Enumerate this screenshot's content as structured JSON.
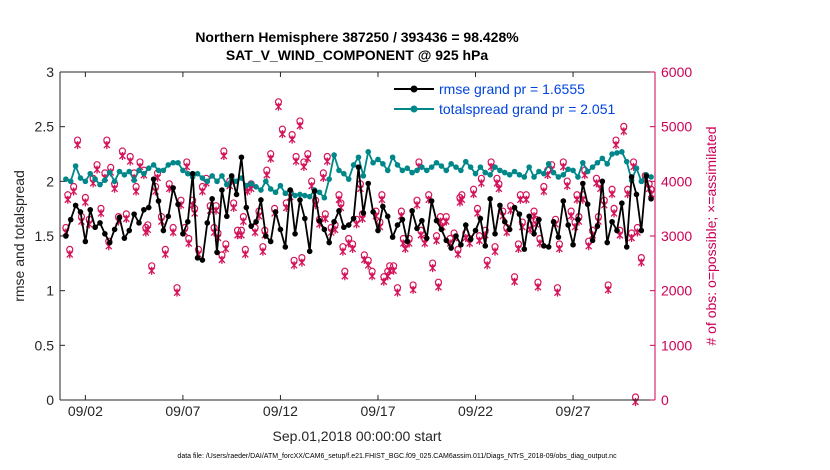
{
  "chart_data": {
    "type": "line",
    "title": "Northern Hemisphere 387250 / 393436 = 98.428%",
    "subtitle": "SAT_V_WIND_COMPONENT @ 925 hPa",
    "xlabel": "Sep.01,2018 00:00:00 start",
    "ylabel": "rmse and totalspread",
    "ylabel_right": "# of obs: o=possible; ×=assimilated",
    "footer": "data file: /Users/raeder/DAI/ATM_forcXX/CAM6_setup/f.e21.FHIST_BGC.f09_025.CAM6assim.011/Diags_NTrS_2018-09/obs_diag_output.nc",
    "xlim": [
      0.7,
      31.2
    ],
    "ylim": [
      0,
      3
    ],
    "ylim_right": [
      0,
      6000
    ],
    "xticks": [
      2,
      7,
      12,
      17,
      22,
      27
    ],
    "xtick_labels": [
      "09/02",
      "09/07",
      "09/12",
      "09/17",
      "09/22",
      "09/27"
    ],
    "yticks": [
      0,
      0.5,
      1,
      1.5,
      2,
      2.5,
      3
    ],
    "ytick_labels": [
      "0",
      "0.5",
      "1",
      "1.5",
      "2",
      "2.5",
      "3"
    ],
    "yticks_right": [
      0,
      1000,
      2000,
      3000,
      4000,
      5000,
      6000
    ],
    "ytick_labels_right": [
      "0",
      "1000",
      "2000",
      "3000",
      "4000",
      "5000",
      "6000"
    ],
    "legend_location": "top-right",
    "colors": {
      "rmse": "#000000",
      "spread": "#00878a",
      "obs": "#d4145a",
      "legend_text": "#0044dd"
    },
    "x": [
      1.0,
      1.25,
      1.5,
      1.75,
      2.0,
      2.25,
      2.5,
      2.75,
      3.0,
      3.25,
      3.5,
      3.75,
      4.0,
      4.25,
      4.5,
      4.75,
      5.0,
      5.25,
      5.5,
      5.75,
      6.0,
      6.25,
      6.5,
      6.75,
      7.0,
      7.25,
      7.5,
      7.75,
      8.0,
      8.25,
      8.5,
      8.75,
      9.0,
      9.25,
      9.5,
      9.75,
      10.0,
      10.25,
      10.5,
      10.75,
      11.0,
      11.25,
      11.5,
      11.75,
      12.0,
      12.25,
      12.5,
      12.75,
      13.0,
      13.25,
      13.5,
      13.75,
      14.0,
      14.25,
      14.5,
      14.75,
      15.0,
      15.25,
      15.5,
      15.75,
      16.0,
      16.25,
      16.5,
      16.75,
      17.0,
      17.25,
      17.5,
      17.75,
      18.0,
      18.25,
      18.5,
      18.75,
      19.0,
      19.25,
      19.5,
      19.75,
      20.0,
      20.25,
      20.5,
      20.75,
      21.0,
      21.25,
      21.5,
      21.75,
      22.0,
      22.25,
      22.5,
      22.75,
      23.0,
      23.25,
      23.5,
      23.75,
      24.0,
      24.25,
      24.5,
      24.75,
      25.0,
      25.25,
      25.5,
      25.75,
      26.0,
      26.25,
      26.5,
      26.75,
      27.0,
      27.25,
      27.5,
      27.75,
      28.0,
      28.25,
      28.5,
      28.75,
      29.0,
      29.25,
      29.5,
      29.75,
      30.0,
      30.25,
      30.5,
      30.75,
      31.0
    ],
    "series": [
      {
        "name": "rmse grand pr = 1.6555",
        "values": [
          1.5,
          1.65,
          1.78,
          1.72,
          1.45,
          1.74,
          1.58,
          1.62,
          1.52,
          1.44,
          1.56,
          1.67,
          1.48,
          1.55,
          1.7,
          1.62,
          1.74,
          1.76,
          2.02,
          1.82,
          1.55,
          1.68,
          1.94,
          1.79,
          1.52,
          1.63,
          2.07,
          1.3,
          1.28,
          1.62,
          1.84,
          1.35,
          1.92,
          1.68,
          2.05,
          1.88,
          2.22,
          1.76,
          1.59,
          1.63,
          1.83,
          1.5,
          1.45,
          1.72,
          1.56,
          1.4,
          1.92,
          1.52,
          1.83,
          1.66,
          1.36,
          1.91,
          1.64,
          1.56,
          1.44,
          1.63,
          1.73,
          1.58,
          1.6,
          1.66,
          2.13,
          1.71,
          1.98,
          1.72,
          1.55,
          1.77,
          1.68,
          1.49,
          1.6,
          1.65,
          1.45,
          1.73,
          1.57,
          1.64,
          1.48,
          1.82,
          1.64,
          1.56,
          1.46,
          1.39,
          1.5,
          1.42,
          1.6,
          1.47,
          1.55,
          1.66,
          1.41,
          1.84,
          1.52,
          1.78,
          1.63,
          1.56,
          1.76,
          1.7,
          1.38,
          1.68,
          1.52,
          1.65,
          1.41,
          1.4,
          1.63,
          1.49,
          1.82,
          1.6,
          1.42,
          1.65,
          1.98,
          1.79,
          1.46,
          1.59,
          2.0,
          1.44,
          1.63,
          1.55,
          1.8,
          1.4,
          2.04,
          1.88,
          1.55,
          2.05,
          1.84
        ]
      },
      {
        "name": "totalspread grand pr = 2.051",
        "values": [
          2.02,
          2.0,
          2.14,
          2.03,
          2.0,
          2.07,
          2.02,
          1.97,
          2.01,
          2.08,
          2.0,
          2.09,
          2.06,
          2.09,
          2.01,
          2.1,
          2.07,
          2.12,
          2.15,
          2.1,
          2.1,
          2.15,
          2.17,
          2.17,
          2.1,
          2.07,
          2.04,
          2.07,
          2.03,
          2.0,
          2.05,
          2.0,
          2.05,
          1.97,
          2.03,
          2.0,
          2.03,
          1.96,
          1.98,
          1.95,
          1.92,
          2.0,
          1.93,
          1.9,
          1.96,
          1.89,
          1.92,
          1.87,
          1.88,
          1.87,
          1.86,
          1.92,
          1.9,
          1.85,
          2.02,
          2.24,
          2.1,
          2.07,
          2.02,
          2.15,
          2.22,
          2.05,
          2.27,
          2.17,
          2.2,
          2.16,
          2.1,
          2.22,
          2.15,
          2.1,
          2.12,
          2.08,
          2.1,
          2.13,
          2.1,
          2.13,
          2.17,
          2.14,
          2.1,
          2.16,
          2.13,
          2.1,
          2.18,
          2.13,
          2.07,
          2.13,
          2.08,
          2.06,
          2.13,
          2.1,
          2.08,
          2.06,
          2.09,
          2.06,
          2.04,
          2.13,
          2.04,
          2.09,
          2.07,
          2.16,
          2.08,
          2.04,
          2.06,
          2.11,
          2.1,
          2.04,
          2.17,
          2.09,
          2.13,
          2.17,
          2.21,
          2.16,
          2.25,
          2.26,
          2.27,
          2.18,
          2.01,
          2.12,
          2.0,
          2.06,
          2.04
        ]
      }
    ],
    "obs_possible": [
      3100,
      2700,
      3850,
      4700,
      3300,
      3650,
      3250,
      4000,
      4250,
      3450,
      4100,
      4700,
      4200,
      3900,
      3300,
      4500,
      3350,
      4400,
      4100,
      3850,
      4300,
      4150,
      3150,
      2400,
      3850,
      4100,
      3300,
      2700,
      3900,
      3100,
      2000,
      3600,
      3100,
      2900,
      3600,
      3450,
      2700,
      3850,
      4000,
      3500,
      3100,
      3000,
      2600,
      2800,
      3950,
      3550,
      3050,
      3050,
      3300,
      3850,
      3900,
      3100,
      3400,
      2750,
      4150,
      4450,
      3450,
      5400,
      4900,
      3550,
      3750,
      4800,
      4400,
      5050,
      4300,
      4450,
      3950,
      3600,
      3250,
      4100,
      4400,
      3100,
      3150,
      3700,
      3550,
      2300,
      2900,
      2800,
      3250,
      3900,
      2600,
      2500,
      2300,
      3400,
      3200,
      2200,
      2300,
      2400,
      2400,
      2000,
      3400,
      2800,
      2900,
      2050,
      3600,
      3050,
      2900,
      3700,
      2450,
      2950,
      2100,
      3200,
      3300,
      2900,
      3000,
      2700,
      3700,
      3000,
      2900,
      3800,
      3450,
      4000,
      3050,
      2500,
      4300,
      2750,
      3900,
      3400,
      3100,
      3500,
      2200,
      2800,
      3200,
      3700,
      3150,
      3400,
      3250,
      2900,
      3850,
      4150,
      4250,
      3250,
      2800,
      4300,
      3950,
      3400,
      3200,
      3300,
      3700,
      4150,
      2850,
      3050,
      4000,
      3900,
      3600,
      2050,
      3800,
      4700,
      3050,
      4950,
      3800,
      3000,
      4300,
      3100,
      2550,
      4050,
      3900,
      3800,
      3700,
      2850,
      3100,
      4300,
      4500,
      3050,
      2550,
      2750,
      3700,
      4300,
      3650,
      4000,
      2100,
      3700,
      3450,
      3500,
      2700,
      2500,
      3350,
      3350,
      2900,
      3300,
      2950,
      3700,
      2000,
      3300,
      0
    ],
    "obs_possible_x": [
      1.0,
      1.2,
      1.4,
      1.6,
      1.8,
      2.0,
      2.2,
      2.4,
      2.6,
      2.8,
      3.0,
      3.1,
      3.3,
      3.5,
      3.7,
      3.9,
      4.1,
      4.3,
      4.5,
      4.6,
      4.8,
      5.0,
      5.2,
      5.4,
      5.6,
      5.7,
      5.9,
      6.1,
      6.3,
      6.5,
      6.7,
      6.9,
      7.1,
      7.3,
      7.5,
      7.6,
      7.8,
      8.0,
      8.2,
      8.4,
      8.6,
      8.8,
      9.0,
      9.2,
      9.4,
      9.6,
      9.8,
      10.0,
      10.1,
      10.3,
      10.5,
      10.7,
      10.9,
      11.1,
      11.3,
      11.5,
      11.7,
      11.9,
      12.1,
      12.3,
      12.5,
      12.6,
      12.8,
      13.0,
      13.2,
      13.4,
      13.6,
      13.8,
      14.0,
      14.2,
      14.4,
      14.6,
      14.8,
      15.0,
      15.1,
      15.3,
      15.5,
      15.7,
      15.9,
      16.1,
      16.3,
      16.5,
      16.7,
      16.9,
      17.1,
      17.3,
      17.5,
      17.6,
      17.8,
      18.0,
      18.2,
      18.4,
      18.6,
      18.8,
      19.0,
      19.2,
      19.4,
      19.6,
      19.8,
      20.0,
      20.1,
      20.3,
      20.5,
      20.7,
      20.9,
      21.1,
      21.3,
      21.5,
      21.7,
      21.9,
      22.1,
      22.3,
      22.5,
      22.6,
      22.8,
      23.0,
      23.2,
      23.4,
      23.6,
      23.8,
      24.0,
      24.2,
      24.4,
      24.6,
      24.8,
      25.0,
      25.1,
      25.3,
      25.5,
      25.7,
      25.9,
      26.1,
      26.3,
      26.5,
      26.7,
      26.9,
      27.1,
      27.3,
      27.5,
      27.6,
      27.8,
      28.0,
      28.2,
      28.4,
      28.6,
      28.8,
      29.0,
      29.2,
      29.4,
      29.6,
      29.8,
      30.0,
      30.1,
      30.3,
      30.5,
      30.7,
      30.9,
      31.0,
      1.1,
      3.2,
      5.1,
      7.2,
      9.1,
      11.2,
      13.1,
      15.2,
      17.2,
      19.1,
      21.2,
      23.1,
      25.2,
      27.2,
      29.1,
      8.7,
      10.2,
      12.7,
      14.3,
      16.2,
      18.3,
      20.2,
      22.2,
      24.3,
      26.2,
      28.3,
      30.2,
      30.6,
      31.1,
      31.15
    ]
  }
}
